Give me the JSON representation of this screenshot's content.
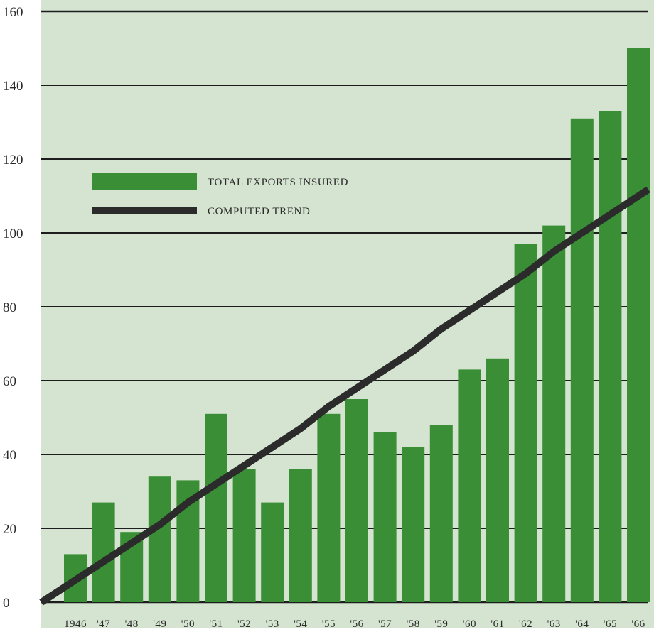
{
  "chart_data": {
    "type": "bar",
    "categories": [
      "1946",
      "'47",
      "'48",
      "'49",
      "'50",
      "'51",
      "'52",
      "'53",
      "'54",
      "'55",
      "'56",
      "'57",
      "'58",
      "'59",
      "'60",
      "'61",
      "'62",
      "'63",
      "'64",
      "'65",
      "'66"
    ],
    "series": [
      {
        "name": "TOTAL EXPORTS INSURED",
        "type": "bar",
        "color": "#3a8f36",
        "values": [
          13,
          27,
          19,
          34,
          33,
          51,
          36,
          27,
          36,
          51,
          55,
          46,
          42,
          48,
          63,
          66,
          97,
          102,
          131,
          133,
          150
        ]
      },
      {
        "name": "COMPUTED TREND",
        "type": "line",
        "color": "#2b2b2b",
        "values": [
          6,
          11,
          16,
          21,
          27,
          32,
          37,
          42,
          47,
          53,
          58,
          63,
          68,
          74,
          79,
          84,
          89,
          95,
          100,
          105,
          110
        ]
      }
    ],
    "y_ticks": [
      "0",
      "20",
      "40",
      "60",
      "80",
      "100",
      "120",
      "140",
      "160"
    ],
    "ylim": [
      0,
      160
    ],
    "title": "",
    "xlabel": "",
    "ylabel": "",
    "grid": true,
    "legend_position": "upper-left",
    "background_color": "#d5e3d1",
    "grid_color": "#1d1d1d"
  }
}
